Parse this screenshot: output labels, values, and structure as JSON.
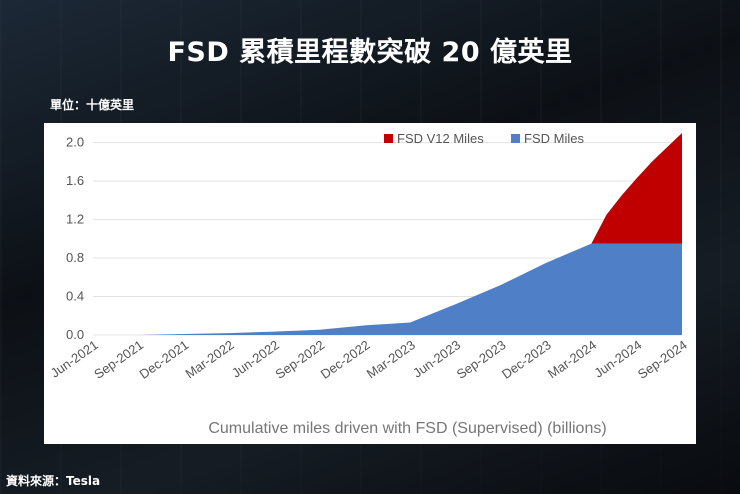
{
  "title": "FSD 累積里程數突破 20 億英里",
  "unit_label": "單位：十億英里",
  "source_label": "資料來源：Tesla",
  "chart_data": {
    "type": "area",
    "x_ticks": [
      "Jun-2021",
      "Sep-2021",
      "Dec-2021",
      "Mar-2022",
      "Jun-2022",
      "Sep-2022",
      "Dec-2022",
      "Mar-2023",
      "Jun-2023",
      "Sep-2023",
      "Dec-2023",
      "Mar-2024",
      "Jun-2024",
      "Sep-2024"
    ],
    "y_ticks": [
      "0.0",
      "0.4",
      "0.8",
      "1.2",
      "1.6",
      "2.0"
    ],
    "ylim": [
      0,
      2.1
    ],
    "xlabel": "Cumulative miles driven with FSD (Supervised) (billions)",
    "legend_position": "top-right",
    "series": [
      {
        "name": "FSD V12 Miles",
        "color": "#c00000",
        "x": [
          "Mar-2024",
          "Apr-2024",
          "May-2024",
          "Jun-2024",
          "Jul-2024",
          "Aug-2024",
          "Sep-2024"
        ],
        "values": [
          0.0,
          0.3,
          0.5,
          0.68,
          0.85,
          1.0,
          1.15
        ]
      },
      {
        "name": "FSD Miles",
        "color": "#4f7fc6",
        "x": [
          "Jun-2021",
          "Sep-2021",
          "Dec-2021",
          "Mar-2022",
          "Jun-2022",
          "Sep-2022",
          "Dec-2022",
          "Mar-2023",
          "Jun-2023",
          "Sep-2023",
          "Dec-2023",
          "Mar-2024",
          "Jun-2024",
          "Sep-2024"
        ],
        "values": [
          0.0,
          0.0,
          0.01,
          0.02,
          0.035,
          0.055,
          0.1,
          0.13,
          0.32,
          0.52,
          0.75,
          0.95,
          0.95,
          0.95
        ]
      }
    ],
    "grid": true
  }
}
